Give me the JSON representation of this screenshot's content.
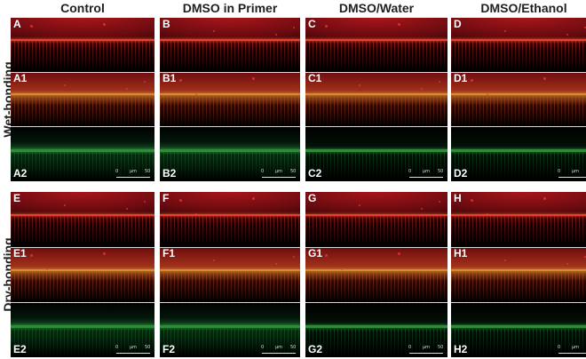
{
  "columns": [
    {
      "title": "Control"
    },
    {
      "title": "DMSO in Primer"
    },
    {
      "title": "DMSO/Water"
    },
    {
      "title": "DMSO/Ethanol"
    }
  ],
  "rows": [
    {
      "title": "Wet-bonding"
    },
    {
      "title": "Dry-bonding"
    }
  ],
  "panels": [
    [
      {
        "labels": [
          "A",
          "A1",
          "A2"
        ]
      },
      {
        "labels": [
          "B",
          "B1",
          "B2"
        ]
      },
      {
        "labels": [
          "C",
          "C1",
          "C2"
        ]
      },
      {
        "labels": [
          "D",
          "D1",
          "D2"
        ]
      }
    ],
    [
      {
        "labels": [
          "E",
          "E1",
          "E2"
        ]
      },
      {
        "labels": [
          "F",
          "F1",
          "F2"
        ]
      },
      {
        "labels": [
          "G",
          "G1",
          "G2"
        ]
      },
      {
        "labels": [
          "H",
          "H1",
          "H2"
        ]
      }
    ]
  ],
  "scalebar": {
    "start": "0",
    "unit": "μm",
    "end": "50"
  },
  "colors": {
    "red_channel": "#a8161a",
    "green_channel": "#2f8a3a",
    "merged": "#d68a2a",
    "separator": "#d8d8d8"
  }
}
